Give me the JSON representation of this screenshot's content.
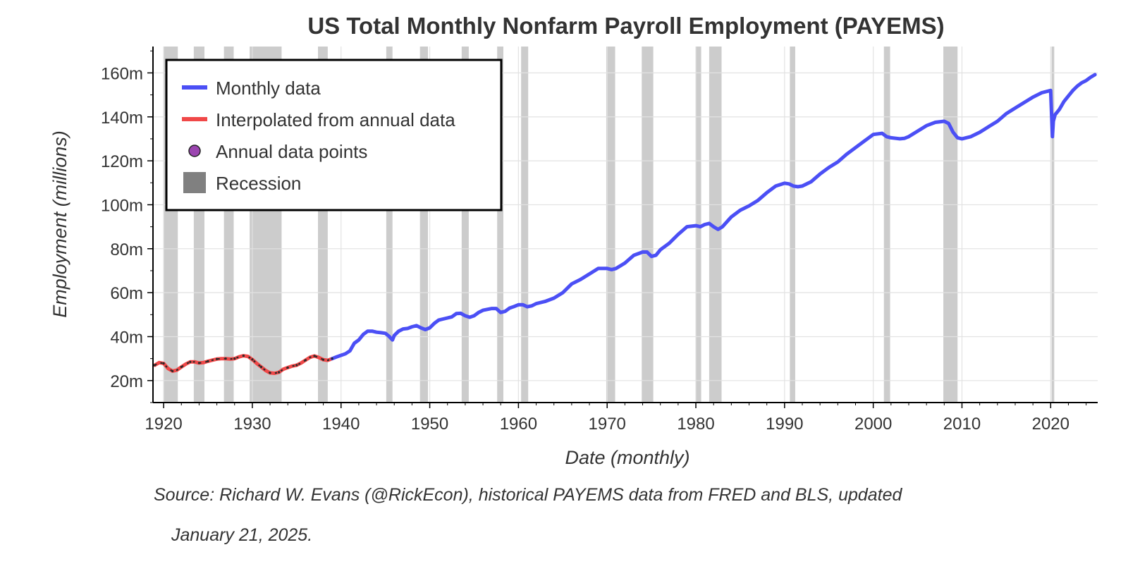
{
  "chart_data": {
    "type": "line",
    "title": "US Total Monthly Nonfarm Payroll Employment (PAYEMS)",
    "xlabel": "Date (monthly)",
    "ylabel": "Employment (millions)",
    "xlim": [
      1918.8,
      2025.3
    ],
    "ylim": [
      10,
      172
    ],
    "x_ticks": [
      1920,
      1930,
      1940,
      1950,
      1960,
      1970,
      1980,
      1990,
      2000,
      2010,
      2020
    ],
    "x_tick_labels": [
      "1920",
      "1930",
      "1940",
      "1950",
      "1960",
      "1970",
      "1980",
      "1990",
      "2000",
      "2010",
      "2020"
    ],
    "y_ticks": [
      20,
      40,
      60,
      80,
      100,
      120,
      140,
      160
    ],
    "y_tick_labels": [
      "20m",
      "40m",
      "60m",
      "80m",
      "100m",
      "120m",
      "140m",
      "160m"
    ],
    "grid": true,
    "legend": {
      "placement": "top-left",
      "entries": [
        "Monthly data",
        "Interpolated from annual data",
        "Annual data points",
        "Recession"
      ]
    },
    "colors": {
      "monthly": "#4b4ff5",
      "interpolated": "#f04848",
      "annual_points": "#9b45b0",
      "recession": "#cccccc",
      "legend_recession": "#808080"
    },
    "series": [
      {
        "name": "Monthly data",
        "x": [
          1939.0,
          1939.5,
          1940.0,
          1940.5,
          1941.0,
          1941.5,
          1942.0,
          1942.5,
          1943.0,
          1943.5,
          1944.0,
          1944.5,
          1945.0,
          1945.4,
          1945.8,
          1946.0,
          1946.5,
          1947.0,
          1947.5,
          1948.0,
          1948.5,
          1949.0,
          1949.5,
          1950.0,
          1950.5,
          1951.0,
          1951.5,
          1952.0,
          1952.5,
          1953.0,
          1953.5,
          1954.0,
          1954.5,
          1955.0,
          1955.5,
          1956.0,
          1956.5,
          1957.0,
          1957.5,
          1958.0,
          1958.5,
          1959.0,
          1959.5,
          1960.0,
          1960.5,
          1961.0,
          1961.5,
          1962.0,
          1963.0,
          1964.0,
          1965.0,
          1966.0,
          1967.0,
          1968.0,
          1969.0,
          1970.0,
          1970.5,
          1971.0,
          1972.0,
          1973.0,
          1974.0,
          1974.5,
          1975.0,
          1975.5,
          1976.0,
          1977.0,
          1978.0,
          1979.0,
          1980.0,
          1980.5,
          1981.0,
          1981.5,
          1982.0,
          1982.5,
          1983.0,
          1984.0,
          1985.0,
          1986.0,
          1987.0,
          1988.0,
          1989.0,
          1990.0,
          1990.5,
          1991.0,
          1991.5,
          1992.0,
          1993.0,
          1994.0,
          1995.0,
          1996.0,
          1997.0,
          1998.0,
          1999.0,
          2000.0,
          2001.0,
          2001.5,
          2002.0,
          2003.0,
          2003.5,
          2004.0,
          2005.0,
          2006.0,
          2007.0,
          2008.0,
          2008.5,
          2009.0,
          2009.5,
          2010.0,
          2011.0,
          2012.0,
          2013.0,
          2014.0,
          2015.0,
          2016.0,
          2017.0,
          2018.0,
          2019.0,
          2020.0,
          2020.2,
          2020.3,
          2020.5,
          2020.8,
          2021.0,
          2021.5,
          2022.0,
          2022.5,
          2023.0,
          2023.5,
          2024.0,
          2024.5,
          2025.0
        ],
        "values": [
          30.0,
          30.8,
          31.5,
          32.2,
          33.5,
          37.0,
          38.5,
          41.0,
          42.5,
          42.5,
          42.0,
          41.8,
          41.5,
          40.2,
          38.5,
          40.5,
          42.5,
          43.5,
          43.7,
          44.5,
          45.0,
          44.0,
          43.2,
          44.0,
          46.0,
          47.5,
          48.0,
          48.5,
          49.0,
          50.5,
          50.6,
          49.5,
          48.8,
          49.5,
          51.0,
          52.0,
          52.4,
          52.8,
          52.8,
          51.0,
          51.5,
          53.0,
          53.7,
          54.5,
          54.5,
          53.6,
          54.0,
          55.0,
          56.0,
          57.5,
          60.0,
          64.0,
          66.0,
          68.5,
          71.0,
          71.0,
          70.5,
          71.0,
          73.5,
          77.0,
          78.5,
          78.5,
          76.5,
          77.0,
          79.5,
          82.5,
          86.5,
          90.0,
          90.5,
          90.0,
          91.0,
          91.5,
          90.0,
          88.8,
          90.0,
          94.5,
          97.5,
          99.5,
          102.0,
          105.5,
          108.5,
          109.8,
          109.5,
          108.5,
          108.2,
          108.5,
          110.5,
          114.0,
          117.0,
          119.5,
          123.0,
          126.0,
          129.0,
          132.0,
          132.5,
          131.0,
          130.5,
          130.0,
          130.2,
          131.0,
          133.5,
          136.0,
          137.5,
          138.0,
          137.0,
          133.0,
          130.5,
          130.0,
          131.0,
          133.0,
          135.5,
          138.0,
          141.5,
          144.0,
          146.5,
          149.0,
          151.0,
          152.0,
          131.0,
          138.0,
          141.0,
          142.5,
          143.5,
          147.0,
          149.5,
          152.0,
          154.0,
          155.5,
          156.5,
          158.0,
          159.2
        ]
      },
      {
        "name": "Interpolated from annual data",
        "x": [
          1919.0,
          1919.5,
          1920.0,
          1920.5,
          1921.0,
          1921.5,
          1922.0,
          1922.5,
          1923.0,
          1923.5,
          1924.0,
          1924.5,
          1925.0,
          1925.5,
          1926.0,
          1926.5,
          1927.0,
          1927.5,
          1928.0,
          1928.5,
          1929.0,
          1929.5,
          1930.0,
          1930.5,
          1931.0,
          1931.5,
          1932.0,
          1932.5,
          1933.0,
          1933.5,
          1934.0,
          1934.5,
          1935.0,
          1935.5,
          1936.0,
          1936.5,
          1937.0,
          1937.5,
          1938.0,
          1938.5,
          1939.0
        ],
        "values": [
          27.0,
          28.2,
          27.8,
          25.5,
          24.3,
          24.8,
          26.2,
          27.5,
          28.5,
          28.5,
          28.0,
          28.2,
          28.8,
          29.3,
          29.8,
          30.0,
          30.0,
          29.8,
          30.0,
          30.8,
          31.3,
          31.0,
          29.6,
          27.8,
          26.2,
          24.6,
          23.5,
          23.3,
          23.8,
          25.2,
          25.9,
          26.6,
          27.0,
          28.0,
          29.3,
          30.6,
          31.2,
          30.5,
          29.5,
          29.2,
          30.0
        ]
      },
      {
        "name": "Annual data points",
        "x": [
          1919,
          1920,
          1921,
          1922,
          1923,
          1924,
          1925,
          1926,
          1927,
          1928,
          1929,
          1930,
          1931,
          1932,
          1933,
          1934,
          1935,
          1936,
          1937,
          1938,
          1939
        ],
        "values": [
          27.0,
          27.8,
          24.3,
          26.2,
          28.5,
          28.0,
          28.8,
          29.8,
          30.0,
          30.0,
          31.3,
          29.6,
          26.2,
          23.5,
          23.8,
          25.9,
          27.0,
          29.3,
          31.2,
          29.5,
          30.0
        ]
      }
    ],
    "recessions": [
      [
        1920.0,
        1921.6
      ],
      [
        1923.4,
        1924.6
      ],
      [
        1926.8,
        1927.9
      ],
      [
        1929.7,
        1933.3
      ],
      [
        1937.4,
        1938.5
      ],
      [
        1945.1,
        1945.8
      ],
      [
        1948.9,
        1949.8
      ],
      [
        1953.6,
        1954.4
      ],
      [
        1957.6,
        1958.3
      ],
      [
        1960.3,
        1961.1
      ],
      [
        1969.9,
        1970.9
      ],
      [
        1973.9,
        1975.2
      ],
      [
        1980.0,
        1980.6
      ],
      [
        1981.5,
        1982.9
      ],
      [
        1990.6,
        1991.2
      ],
      [
        2001.2,
        2001.9
      ],
      [
        2007.9,
        2009.5
      ],
      [
        2020.1,
        2020.4
      ]
    ]
  },
  "source_line1": "Source: Richard W. Evans (@RickEcon), historical PAYEMS data from FRED and BLS, updated",
  "source_line2": "January 21, 2025."
}
